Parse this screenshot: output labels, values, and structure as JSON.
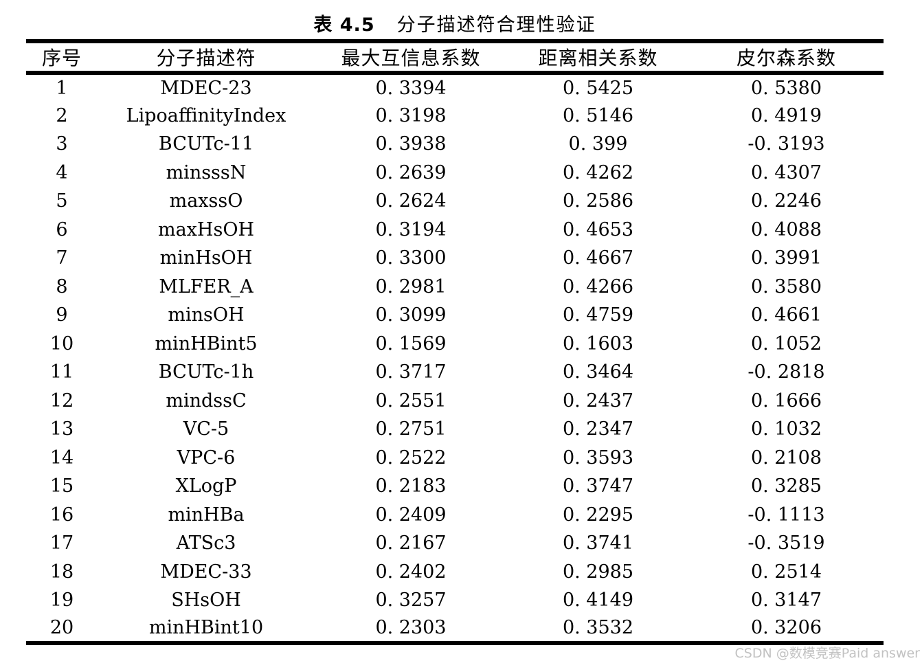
{
  "title": {
    "label": "表 4.5",
    "text": "分子描述符合理性验证"
  },
  "table": {
    "headers": [
      "序号",
      "分子描述符",
      "最大互信息系数",
      "距离相关系数",
      "皮尔森系数"
    ],
    "rows": [
      [
        "1",
        "MDEC-23",
        "0. 3394",
        "0. 5425",
        "0. 5380"
      ],
      [
        "2",
        "LipoaffinityIndex",
        "0. 3198",
        "0. 5146",
        "0. 4919"
      ],
      [
        "3",
        "BCUTc-11",
        "0. 3938",
        "0. 399",
        "-0. 3193"
      ],
      [
        "4",
        "minsssN",
        "0. 2639",
        "0. 4262",
        "0. 4307"
      ],
      [
        "5",
        "maxssO",
        "0. 2624",
        "0. 2586",
        "0. 2246"
      ],
      [
        "6",
        "maxHsOH",
        "0. 3194",
        "0. 4653",
        "0. 4088"
      ],
      [
        "7",
        "minHsOH",
        "0. 3300",
        "0. 4667",
        "0. 3991"
      ],
      [
        "8",
        "MLFER_A",
        "0. 2981",
        "0. 4266",
        "0. 3580"
      ],
      [
        "9",
        "minsOH",
        "0. 3099",
        "0. 4759",
        "0. 4661"
      ],
      [
        "10",
        "minHBint5",
        "0. 1569",
        "0. 1603",
        "0. 1052"
      ],
      [
        "11",
        "BCUTc-1h",
        "0. 3717",
        "0. 3464",
        "-0. 2818"
      ],
      [
        "12",
        "mindssC",
        "0. 2551",
        "0. 2437",
        "0. 1666"
      ],
      [
        "13",
        "VC-5",
        "0. 2751",
        "0. 2347",
        "0. 1032"
      ],
      [
        "14",
        "VPC-6",
        "0. 2522",
        "0. 3593",
        "0. 2108"
      ],
      [
        "15",
        "XLogP",
        "0. 2183",
        "0. 3747",
        "0. 3285"
      ],
      [
        "16",
        "minHBa",
        "0. 2409",
        "0. 2295",
        "-0. 1113"
      ],
      [
        "17",
        "ATSc3",
        "0. 2167",
        "0. 3741",
        "-0. 3519"
      ],
      [
        "18",
        "MDEC-33",
        "0. 2402",
        "0. 2985",
        "0. 2514"
      ],
      [
        "19",
        "SHsOH",
        "0. 3257",
        "0. 4149",
        "0. 3147"
      ],
      [
        "20",
        "minHBint10",
        "0. 2303",
        "0. 3532",
        "0. 3206"
      ]
    ]
  },
  "watermark": {
    "text": "CSDN @数模竞赛Paid answer",
    "color": "#c2c2c2"
  },
  "colors": {
    "text": "#000000",
    "rule": "#000000",
    "background": "#ffffff"
  }
}
